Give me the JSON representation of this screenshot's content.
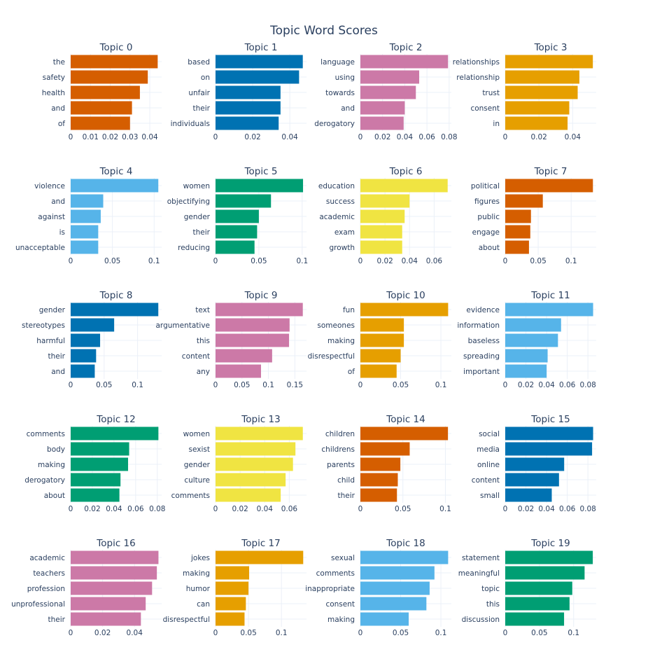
{
  "chart_data": {
    "type": "bar",
    "title": "Topic Word Scores",
    "orientation": "horizontal",
    "colors": [
      "#D55E00",
      "#0072B2",
      "#CC79A7",
      "#E69F00",
      "#56B4E9",
      "#009E73",
      "#F0E442"
    ],
    "subplots": [
      {
        "title": "Topic 0",
        "words": [
          "the",
          "safety",
          "health",
          "and",
          "of"
        ],
        "values": [
          0.044,
          0.039,
          0.035,
          0.031,
          0.03
        ],
        "xlim": [
          0,
          0.046
        ],
        "xticks": [
          0,
          0.01,
          0.02,
          0.03,
          0.04
        ],
        "xtick_labels": [
          "0",
          "0.01",
          "0.02",
          "0.03",
          "0.04"
        ]
      },
      {
        "title": "Topic 1",
        "words": [
          "based",
          "on",
          "unfair",
          "their",
          "individuals"
        ],
        "values": [
          0.047,
          0.045,
          0.035,
          0.035,
          0.034
        ],
        "xlim": [
          0,
          0.049
        ],
        "xticks": [
          0,
          0.02,
          0.04
        ],
        "xtick_labels": [
          "0",
          "0.02",
          "0.04"
        ]
      },
      {
        "title": "Topic 2",
        "words": [
          "language",
          "using",
          "towards",
          "and",
          "derogatory"
        ],
        "values": [
          0.079,
          0.053,
          0.05,
          0.04,
          0.039
        ],
        "xlim": [
          0,
          0.082
        ],
        "xticks": [
          0,
          0.02,
          0.04,
          0.06,
          0.08
        ],
        "xtick_labels": [
          "0",
          "0.02",
          "0.04",
          "0.06",
          "0.08"
        ]
      },
      {
        "title": "Topic 3",
        "words": [
          "relationships",
          "relationship",
          "trust",
          "consent",
          "in"
        ],
        "values": [
          0.052,
          0.044,
          0.043,
          0.038,
          0.037
        ],
        "xlim": [
          0,
          0.054
        ],
        "xticks": [
          0,
          0.02,
          0.04
        ],
        "xtick_labels": [
          "0",
          "0.02",
          "0.04"
        ]
      },
      {
        "title": "Topic 4",
        "words": [
          "violence",
          "and",
          "against",
          "is",
          "unacceptable"
        ],
        "values": [
          0.105,
          0.039,
          0.036,
          0.033,
          0.033
        ],
        "xlim": [
          0,
          0.109
        ],
        "xticks": [
          0,
          0.05,
          0.1
        ],
        "xtick_labels": [
          "0",
          "0.05",
          "0.1"
        ]
      },
      {
        "title": "Topic 5",
        "words": [
          "women",
          "objectifying",
          "gender",
          "their",
          "reducing"
        ],
        "values": [
          0.101,
          0.064,
          0.05,
          0.048,
          0.045
        ],
        "xlim": [
          0,
          0.105
        ],
        "xticks": [
          0,
          0.05,
          0.1
        ],
        "xtick_labels": [
          "0",
          "0.05",
          "0.1"
        ]
      },
      {
        "title": "Topic 6",
        "words": [
          "education",
          "success",
          "academic",
          "exam",
          "growth"
        ],
        "values": [
          0.071,
          0.04,
          0.036,
          0.034,
          0.034
        ],
        "xlim": [
          0,
          0.074
        ],
        "xticks": [
          0,
          0.02,
          0.04,
          0.06
        ],
        "xtick_labels": [
          "0",
          "0.02",
          "0.04",
          "0.06"
        ]
      },
      {
        "title": "Topic 7",
        "words": [
          "political",
          "figures",
          "public",
          "engage",
          "about"
        ],
        "values": [
          0.133,
          0.057,
          0.039,
          0.038,
          0.036
        ],
        "xlim": [
          0,
          0.138
        ],
        "xticks": [
          0,
          0.05,
          0.1
        ],
        "xtick_labels": [
          "0",
          "0.05",
          "0.1"
        ]
      },
      {
        "title": "Topic 8",
        "words": [
          "gender",
          "stereotypes",
          "harmful",
          "their",
          "and"
        ],
        "values": [
          0.131,
          0.065,
          0.044,
          0.038,
          0.036
        ],
        "xlim": [
          0,
          0.136
        ],
        "xticks": [
          0,
          0.05,
          0.1
        ],
        "xtick_labels": [
          "0",
          "0.05",
          "0.1"
        ]
      },
      {
        "title": "Topic 9",
        "words": [
          "text",
          "argumentative",
          "this",
          "content",
          "any"
        ],
        "values": [
          0.165,
          0.14,
          0.139,
          0.107,
          0.086
        ],
        "xlim": [
          0,
          0.172
        ],
        "xticks": [
          0,
          0.05,
          0.1,
          0.15
        ],
        "xtick_labels": [
          "0",
          "0.05",
          "0.1",
          "0.15"
        ]
      },
      {
        "title": "Topic 10",
        "words": [
          "fun",
          "someones",
          "making",
          "disrespectful",
          "of"
        ],
        "values": [
          0.109,
          0.054,
          0.054,
          0.05,
          0.045
        ],
        "xlim": [
          0,
          0.113
        ],
        "xticks": [
          0,
          0.05,
          0.1
        ],
        "xtick_labels": [
          "0",
          "0.05",
          "0.1"
        ]
      },
      {
        "title": "Topic 11",
        "words": [
          "evidence",
          "information",
          "baseless",
          "spreading",
          "important"
        ],
        "values": [
          0.085,
          0.054,
          0.051,
          0.041,
          0.04
        ],
        "xlim": [
          0,
          0.088
        ],
        "xticks": [
          0,
          0.02,
          0.04,
          0.06,
          0.08
        ],
        "xtick_labels": [
          "0",
          "0.02",
          "0.04",
          "0.06",
          "0.08"
        ]
      },
      {
        "title": "Topic 12",
        "words": [
          "comments",
          "body",
          "making",
          "derogatory",
          "about"
        ],
        "values": [
          0.081,
          0.054,
          0.053,
          0.046,
          0.045
        ],
        "xlim": [
          0,
          0.084
        ],
        "xticks": [
          0,
          0.02,
          0.04,
          0.06,
          0.08
        ],
        "xtick_labels": [
          "0",
          "0.02",
          "0.04",
          "0.06",
          "0.08"
        ]
      },
      {
        "title": "Topic 13",
        "words": [
          "women",
          "sexist",
          "gender",
          "culture",
          "comments"
        ],
        "values": [
          0.071,
          0.065,
          0.063,
          0.057,
          0.053
        ],
        "xlim": [
          0,
          0.074
        ],
        "xticks": [
          0,
          0.02,
          0.04,
          0.06
        ],
        "xtick_labels": [
          "0",
          "0.02",
          "0.04",
          "0.06"
        ]
      },
      {
        "title": "Topic 14",
        "words": [
          "children",
          "childrens",
          "parents",
          "child",
          "their"
        ],
        "values": [
          0.103,
          0.058,
          0.047,
          0.044,
          0.043
        ],
        "xlim": [
          0,
          0.107
        ],
        "xticks": [
          0,
          0.05,
          0.1
        ],
        "xtick_labels": [
          "0",
          "0.05",
          "0.1"
        ]
      },
      {
        "title": "Topic 15",
        "words": [
          "social",
          "media",
          "online",
          "content",
          "small"
        ],
        "values": [
          0.085,
          0.084,
          0.057,
          0.052,
          0.045
        ],
        "xlim": [
          0,
          0.088
        ],
        "xticks": [
          0,
          0.02,
          0.04,
          0.06,
          0.08
        ],
        "xtick_labels": [
          "0",
          "0.02",
          "0.04",
          "0.06",
          "0.08"
        ]
      },
      {
        "title": "Topic 16",
        "words": [
          "academic",
          "teachers",
          "profession",
          "unprofessional",
          "their"
        ],
        "values": [
          0.055,
          0.054,
          0.051,
          0.047,
          0.044
        ],
        "xlim": [
          0,
          0.057
        ],
        "xticks": [
          0,
          0.02,
          0.04
        ],
        "xtick_labels": [
          "0",
          "0.02",
          "0.04"
        ]
      },
      {
        "title": "Topic 17",
        "words": [
          "jokes",
          "making",
          "humor",
          "can",
          "disrespectful"
        ],
        "values": [
          0.133,
          0.051,
          0.05,
          0.046,
          0.044
        ],
        "xlim": [
          0,
          0.138
        ],
        "xticks": [
          0,
          0.05,
          0.1
        ],
        "xtick_labels": [
          "0",
          "0.05",
          "0.1"
        ]
      },
      {
        "title": "Topic 18",
        "words": [
          "sexual",
          "comments",
          "inappropriate",
          "consent",
          "making"
        ],
        "values": [
          0.109,
          0.092,
          0.086,
          0.082,
          0.06
        ],
        "xlim": [
          0,
          0.113
        ],
        "xticks": [
          0,
          0.05,
          0.1
        ],
        "xtick_labels": [
          "0",
          "0.05",
          "0.1"
        ]
      },
      {
        "title": "Topic 19",
        "words": [
          "statement",
          "meaningful",
          "topic",
          "this",
          "discussion"
        ],
        "values": [
          0.128,
          0.116,
          0.098,
          0.094,
          0.086
        ],
        "xlim": [
          0,
          0.133
        ],
        "xticks": [
          0,
          0.05,
          0.1
        ],
        "xtick_labels": [
          "0",
          "0.05",
          "0.1"
        ]
      }
    ]
  }
}
